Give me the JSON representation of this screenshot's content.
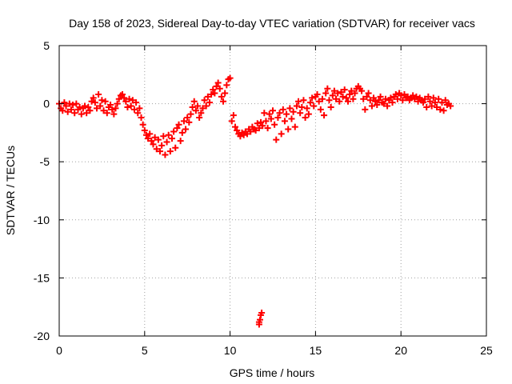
{
  "chart_data": {
    "type": "scatter",
    "title": "Day 158 of 2023, Sidereal Day-to-day VTEC variation (SDTVAR) for receiver vacs",
    "xlabel": "GPS time / hours",
    "ylabel": "SDTVAR / TECUs",
    "xlim": [
      0,
      25
    ],
    "ylim": [
      -20,
      5
    ],
    "xticks": [
      0,
      5,
      10,
      15,
      20,
      25
    ],
    "yticks": [
      -20,
      -15,
      -10,
      -5,
      0,
      5
    ],
    "xtick_labels": [
      "0",
      "5",
      "10",
      "15",
      "20",
      "25"
    ],
    "ytick_labels": [
      "-20",
      "-15",
      "-10",
      "-5",
      "0",
      "5"
    ],
    "grid": true,
    "marker": "+",
    "colors": {
      "points": "#ff0000",
      "grid": "#a0a0a0",
      "axes": "#000000"
    },
    "series": [
      {
        "name": "SDTVAR",
        "points": [
          [
            0.0,
            0.0
          ],
          [
            0.1,
            -0.4
          ],
          [
            0.2,
            -0.6
          ],
          [
            0.3,
            0.1
          ],
          [
            0.4,
            -0.2
          ],
          [
            0.5,
            -0.7
          ],
          [
            0.6,
            0.0
          ],
          [
            0.7,
            -0.5
          ],
          [
            0.8,
            -0.1
          ],
          [
            0.9,
            -0.8
          ],
          [
            1.0,
            0.0
          ],
          [
            1.1,
            -0.5
          ],
          [
            1.2,
            -0.3
          ],
          [
            1.3,
            -0.9
          ],
          [
            1.4,
            -0.4
          ],
          [
            1.5,
            -0.2
          ],
          [
            1.6,
            -0.8
          ],
          [
            1.7,
            -0.3
          ],
          [
            1.8,
            -0.6
          ],
          [
            1.9,
            0.2
          ],
          [
            2.0,
            0.5
          ],
          [
            2.1,
            0.1
          ],
          [
            2.2,
            -0.4
          ],
          [
            2.3,
            0.8
          ],
          [
            2.4,
            -0.2
          ],
          [
            2.5,
            0.3
          ],
          [
            2.6,
            -0.6
          ],
          [
            2.7,
            0.2
          ],
          [
            2.8,
            -0.8
          ],
          [
            2.9,
            -0.3
          ],
          [
            3.0,
            -0.1
          ],
          [
            3.1,
            -0.5
          ],
          [
            3.2,
            -0.9
          ],
          [
            3.3,
            -0.4
          ],
          [
            3.4,
            0.0
          ],
          [
            3.5,
            0.4
          ],
          [
            3.6,
            0.7
          ],
          [
            3.7,
            0.8
          ],
          [
            3.8,
            0.5
          ],
          [
            3.9,
            0.2
          ],
          [
            4.0,
            -0.3
          ],
          [
            4.1,
            0.4
          ],
          [
            4.2,
            -0.2
          ],
          [
            4.3,
            0.3
          ],
          [
            4.4,
            -0.5
          ],
          [
            4.5,
            0.1
          ],
          [
            4.6,
            -0.8
          ],
          [
            4.7,
            -0.4
          ],
          [
            4.8,
            -1.2
          ],
          [
            4.9,
            -1.8
          ],
          [
            5.0,
            -2.3
          ],
          [
            5.1,
            -2.7
          ],
          [
            5.2,
            -3.0
          ],
          [
            5.3,
            -2.6
          ],
          [
            5.4,
            -3.2
          ],
          [
            5.5,
            -3.5
          ],
          [
            5.6,
            -2.9
          ],
          [
            5.7,
            -3.9
          ],
          [
            5.8,
            -3.1
          ],
          [
            5.9,
            -4.1
          ],
          [
            6.0,
            -3.6
          ],
          [
            6.1,
            -2.8
          ],
          [
            6.2,
            -4.4
          ],
          [
            6.3,
            -3.3
          ],
          [
            6.4,
            -2.7
          ],
          [
            6.5,
            -4.1
          ],
          [
            6.6,
            -3.0
          ],
          [
            6.7,
            -2.4
          ],
          [
            6.8,
            -3.8
          ],
          [
            6.9,
            -2.1
          ],
          [
            7.0,
            -1.8
          ],
          [
            7.1,
            -3.2
          ],
          [
            7.2,
            -2.5
          ],
          [
            7.3,
            -1.5
          ],
          [
            7.4,
            -2.2
          ],
          [
            7.5,
            -1.2
          ],
          [
            7.6,
            -1.6
          ],
          [
            7.7,
            -0.9
          ],
          [
            7.8,
            -0.3
          ],
          [
            7.9,
            0.2
          ],
          [
            8.0,
            -0.6
          ],
          [
            8.1,
            -0.2
          ],
          [
            8.2,
            -1.2
          ],
          [
            8.3,
            -0.8
          ],
          [
            8.4,
            -0.4
          ],
          [
            8.5,
            0.3
          ],
          [
            8.6,
            -0.2
          ],
          [
            8.7,
            0.6
          ],
          [
            8.8,
            0.1
          ],
          [
            8.9,
            0.8
          ],
          [
            9.0,
            1.2
          ],
          [
            9.1,
            0.9
          ],
          [
            9.2,
            1.5
          ],
          [
            9.3,
            1.8
          ],
          [
            9.4,
            1.3
          ],
          [
            9.5,
            0.6
          ],
          [
            9.6,
            0.2
          ],
          [
            9.7,
            0.9
          ],
          [
            9.8,
            1.6
          ],
          [
            9.9,
            2.1
          ],
          [
            10.0,
            2.2
          ],
          [
            10.1,
            -1.5
          ],
          [
            10.2,
            -1.0
          ],
          [
            10.3,
            -2.0
          ],
          [
            10.4,
            -2.3
          ],
          [
            10.5,
            -2.6
          ],
          [
            10.6,
            -2.8
          ],
          [
            10.7,
            -2.5
          ],
          [
            10.8,
            -2.7
          ],
          [
            10.9,
            -2.4
          ],
          [
            11.0,
            -2.6
          ],
          [
            11.1,
            -2.2
          ],
          [
            11.2,
            -2.4
          ],
          [
            11.3,
            -2.0
          ],
          [
            11.4,
            -2.2
          ],
          [
            11.5,
            -2.3
          ],
          [
            11.6,
            -1.7
          ],
          [
            11.7,
            -2.1
          ],
          [
            11.8,
            -1.6
          ],
          [
            11.9,
            -1.9
          ],
          [
            12.0,
            -0.8
          ],
          [
            12.1,
            -1.5
          ],
          [
            12.2,
            -2.1
          ],
          [
            12.3,
            -0.9
          ],
          [
            12.4,
            -1.3
          ],
          [
            12.5,
            -0.6
          ],
          [
            12.6,
            -1.8
          ],
          [
            12.7,
            -3.1
          ],
          [
            12.8,
            -1.2
          ],
          [
            12.9,
            -0.8
          ],
          [
            13.0,
            -2.6
          ],
          [
            13.1,
            -0.5
          ],
          [
            13.2,
            -1.5
          ],
          [
            13.3,
            -0.9
          ],
          [
            13.4,
            -2.2
          ],
          [
            13.5,
            -0.4
          ],
          [
            13.6,
            -1.3
          ],
          [
            13.7,
            -0.7
          ],
          [
            13.8,
            -2.0
          ],
          [
            13.9,
            -0.2
          ],
          [
            14.0,
            0.2
          ],
          [
            14.1,
            -0.8
          ],
          [
            14.2,
            -0.3
          ],
          [
            14.3,
            0.3
          ],
          [
            14.4,
            -1.2
          ],
          [
            14.5,
            -0.4
          ],
          [
            14.6,
            -0.9
          ],
          [
            14.7,
            0.1
          ],
          [
            14.8,
            0.5
          ],
          [
            14.9,
            -0.2
          ],
          [
            15.0,
            0.6
          ],
          [
            15.1,
            0.8
          ],
          [
            15.2,
            0.2
          ],
          [
            15.3,
            -0.5
          ],
          [
            15.4,
            0.4
          ],
          [
            15.5,
            -1.0
          ],
          [
            15.6,
            0.9
          ],
          [
            15.7,
            1.3
          ],
          [
            15.8,
            0.3
          ],
          [
            15.9,
            -0.3
          ],
          [
            16.0,
            0.7
          ],
          [
            16.1,
            1.1
          ],
          [
            16.2,
            0.4
          ],
          [
            16.3,
            0.9
          ],
          [
            16.4,
            0.2
          ],
          [
            16.5,
            1.0
          ],
          [
            16.6,
            0.6
          ],
          [
            16.7,
            1.2
          ],
          [
            16.8,
            0.5
          ],
          [
            16.9,
            0.2
          ],
          [
            17.0,
            0.8
          ],
          [
            17.1,
            1.1
          ],
          [
            17.2,
            0.4
          ],
          [
            17.3,
            0.9
          ],
          [
            17.4,
            1.3
          ],
          [
            17.5,
            1.5
          ],
          [
            17.6,
            1.3
          ],
          [
            17.7,
            1.1
          ],
          [
            17.8,
            0.4
          ],
          [
            17.9,
            -0.5
          ],
          [
            18.0,
            0.6
          ],
          [
            18.1,
            0.9
          ],
          [
            18.2,
            0.3
          ],
          [
            18.3,
            -0.2
          ],
          [
            18.4,
            0.5
          ],
          [
            18.5,
            0.2
          ],
          [
            18.6,
            -0.1
          ],
          [
            18.7,
            0.3
          ],
          [
            18.8,
            0.6
          ],
          [
            18.9,
            0.1
          ],
          [
            19.0,
            0.0
          ],
          [
            19.1,
            0.4
          ],
          [
            19.2,
            -0.2
          ],
          [
            19.3,
            0.3
          ],
          [
            19.4,
            0.5
          ],
          [
            19.5,
            0.1
          ],
          [
            19.6,
            0.6
          ],
          [
            19.7,
            0.8
          ],
          [
            19.8,
            0.4
          ],
          [
            19.9,
            0.9
          ],
          [
            20.0,
            0.7
          ],
          [
            20.1,
            0.3
          ],
          [
            20.2,
            0.8
          ],
          [
            20.3,
            0.5
          ],
          [
            20.4,
            0.6
          ],
          [
            20.5,
            0.3
          ],
          [
            20.6,
            0.5
          ],
          [
            20.7,
            0.7
          ],
          [
            20.8,
            0.4
          ],
          [
            20.9,
            0.6
          ],
          [
            21.0,
            0.2
          ],
          [
            21.1,
            0.5
          ],
          [
            21.2,
            0.3
          ],
          [
            21.3,
            0.1
          ],
          [
            21.4,
            0.4
          ],
          [
            21.5,
            -0.3
          ],
          [
            21.6,
            0.6
          ],
          [
            21.7,
            0.2
          ],
          [
            21.8,
            -0.2
          ],
          [
            21.9,
            0.5
          ],
          [
            22.0,
            0.1
          ],
          [
            22.1,
            -0.3
          ],
          [
            22.2,
            0.4
          ],
          [
            22.3,
            -0.5
          ],
          [
            22.4,
            0.1
          ],
          [
            22.5,
            -0.6
          ],
          [
            22.6,
            0.3
          ],
          [
            22.7,
            -0.1
          ],
          [
            22.8,
            0.0
          ],
          [
            22.9,
            -0.2
          ],
          [
            11.7,
            -19.0
          ],
          [
            11.75,
            -18.6
          ],
          [
            11.8,
            -18.2
          ],
          [
            11.85,
            -18.0
          ],
          [
            11.7,
            -18.8
          ]
        ]
      }
    ]
  }
}
